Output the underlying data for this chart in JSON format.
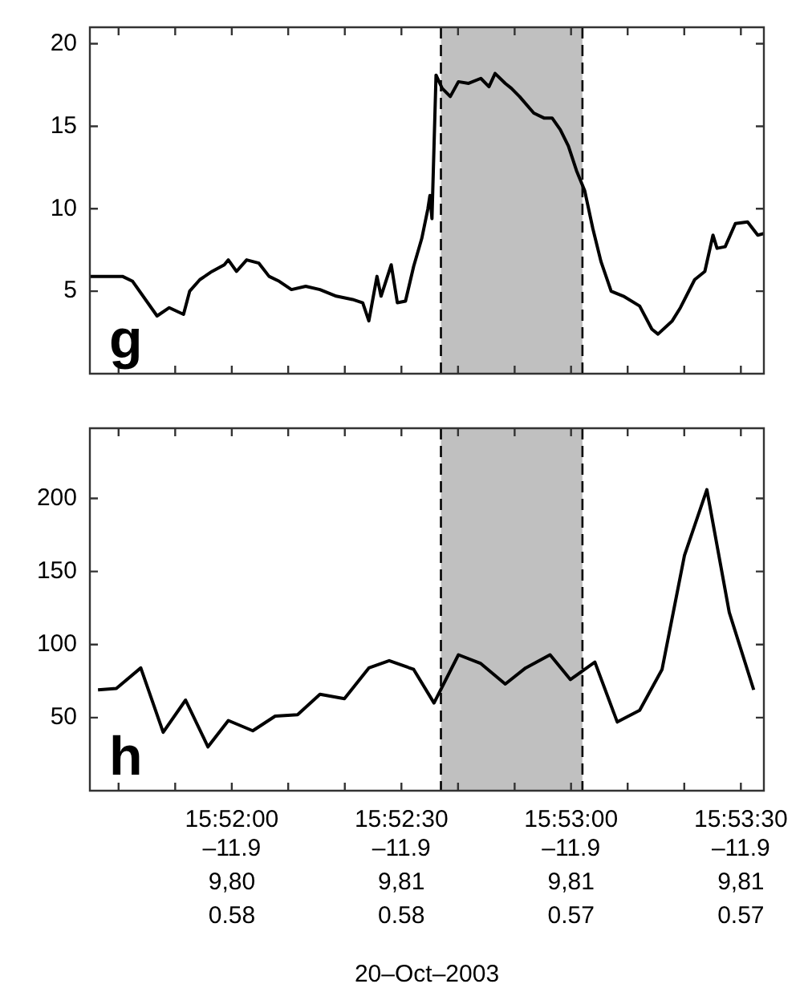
{
  "chart_data": [
    {
      "type": "line",
      "xlim": [
        15.8597,
        15.8928
      ],
      "ylim": [
        0,
        21
      ],
      "yticks": [
        5,
        10,
        15,
        20
      ],
      "tick_labels": "y",
      "annotations": [
        "g"
      ],
      "xticks": [
        {
          "value": 15.86111,
          "label": null
        },
        {
          "value": 15.86389,
          "label": null
        },
        {
          "value": 15.86667,
          "label": null
        },
        {
          "value": 15.86944,
          "label": null
        },
        {
          "value": 15.87222,
          "label": null
        },
        {
          "value": 15.875,
          "label": null
        },
        {
          "value": 15.87778,
          "label": null
        },
        {
          "value": 15.88056,
          "label": null
        },
        {
          "value": 15.88333,
          "label": null
        },
        {
          "value": 15.88611,
          "label": null
        },
        {
          "value": 15.88889,
          "label": null
        },
        {
          "value": 15.89167,
          "label": null
        }
      ],
      "bands": [
        {
          "axis": "x",
          "from": 15.87694,
          "to": 15.88389,
          "color": "#c0c0c0"
        }
      ],
      "ref_lines": [
        {
          "axis": "x",
          "value": 15.87694,
          "line_style": "dashed",
          "color": "#000000"
        },
        {
          "axis": "x",
          "value": 15.88389,
          "line_style": "dashed",
          "color": "#000000"
        }
      ],
      "series": [
        {
          "color": "#000000",
          "x": [
            15.8597,
            15.8613,
            15.8618,
            15.863,
            15.8636,
            15.8643,
            15.8646,
            15.8651,
            15.8657,
            15.8663,
            15.8665,
            15.8669,
            15.8674,
            15.868,
            15.8685,
            15.869,
            15.8696,
            15.8703,
            15.871,
            15.8718,
            15.8726,
            15.8731,
            15.8734,
            15.8738,
            15.874,
            15.8745,
            15.8748,
            15.8752,
            15.8756,
            15.876,
            15.8763,
            15.8764,
            15.8765,
            15.8767,
            15.877,
            15.8774,
            15.8778,
            15.8783,
            15.8789,
            15.8793,
            15.8796,
            15.8801,
            15.8804,
            15.8808,
            15.8815,
            15.882,
            15.8824,
            15.8828,
            15.8832,
            15.8836,
            15.884,
            15.8844,
            15.8848,
            15.8853,
            15.8859,
            15.8867,
            15.8873,
            15.8876,
            15.8883,
            15.8887,
            15.8894,
            15.8899,
            15.8903,
            15.8905,
            15.8909,
            15.8914,
            15.892,
            15.8925,
            15.8928
          ],
          "values": [
            5.9,
            5.9,
            5.6,
            3.5,
            4.0,
            3.6,
            5.0,
            5.7,
            6.2,
            6.6,
            6.9,
            6.2,
            6.9,
            6.7,
            5.9,
            5.6,
            5.1,
            5.3,
            5.1,
            4.7,
            4.5,
            4.3,
            3.2,
            5.9,
            4.7,
            6.6,
            4.3,
            4.4,
            6.5,
            8.2,
            10.0,
            10.8,
            9.4,
            18.1,
            17.3,
            16.8,
            17.7,
            17.6,
            17.9,
            17.4,
            18.2,
            17.6,
            17.3,
            16.8,
            15.8,
            15.5,
            15.5,
            14.8,
            13.8,
            12.3,
            11.1,
            8.8,
            6.8,
            5.0,
            4.7,
            4.1,
            2.7,
            2.4,
            3.2,
            4.0,
            5.7,
            6.2,
            8.4,
            7.6,
            7.7,
            9.1,
            9.2,
            8.4,
            8.5
          ]
        }
      ]
    },
    {
      "type": "line",
      "xlim": [
        15.8597,
        15.8928
      ],
      "ylim": [
        0,
        248
      ],
      "yticks": [
        50,
        100,
        150,
        200
      ],
      "xlabel": "20–Oct–2003",
      "annotations": [
        "h",
        "–11.9",
        "9,80",
        "0.58",
        "–11.9",
        "9,81",
        "0.58",
        "–11.9",
        "9,81",
        "0.57",
        "–11.9",
        "9,81",
        "0.57"
      ],
      "xticks": [
        {
          "value": 15.86111,
          "label": null
        },
        {
          "value": 15.86389,
          "label": null
        },
        {
          "value": 15.86667,
          "label": "15:52:00"
        },
        {
          "value": 15.86944,
          "label": null
        },
        {
          "value": 15.87222,
          "label": null
        },
        {
          "value": 15.875,
          "label": "15:52:30"
        },
        {
          "value": 15.87778,
          "label": null
        },
        {
          "value": 15.88056,
          "label": null
        },
        {
          "value": 15.88333,
          "label": "15:53:00"
        },
        {
          "value": 15.88611,
          "label": null
        },
        {
          "value": 15.88889,
          "label": null
        },
        {
          "value": 15.89167,
          "label": "15:53:30"
        }
      ],
      "bands": [
        {
          "axis": "x",
          "from": 15.87694,
          "to": 15.88389,
          "color": "#c0c0c0"
        }
      ],
      "ref_lines": [
        {
          "axis": "x",
          "value": 15.87694,
          "line_style": "dashed",
          "color": "#000000"
        },
        {
          "axis": "x",
          "value": 15.88389,
          "line_style": "dashed",
          "color": "#000000"
        }
      ],
      "series": [
        {
          "color": "#000000",
          "x": [
            15.8601,
            15.861,
            15.8622,
            15.8633,
            15.8644,
            15.8655,
            15.8665,
            15.8677,
            15.8688,
            15.8699,
            15.871,
            15.8722,
            15.8734,
            15.8744,
            15.8756,
            15.8766,
            15.8778,
            15.8789,
            15.8801,
            15.8811,
            15.8823,
            15.8833,
            15.8845,
            15.8856,
            15.8867,
            15.8878,
            15.8889,
            15.89,
            15.8911,
            15.8923
          ],
          "values": [
            69,
            70,
            84,
            40,
            62,
            30,
            48,
            41,
            51,
            52,
            66,
            63,
            84,
            89,
            83,
            60,
            93,
            87,
            73,
            84,
            93,
            76,
            88,
            47,
            55,
            83,
            161,
            206,
            122,
            69
          ]
        }
      ]
    }
  ]
}
